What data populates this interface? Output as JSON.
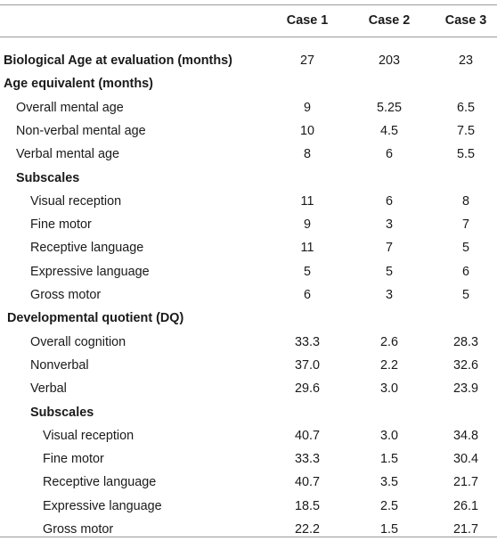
{
  "table": {
    "headers": [
      "Case 1",
      "Case 2",
      "Case 3"
    ],
    "rows": [
      {
        "label": "Biological Age at evaluation (months)",
        "level": 0,
        "bold": true,
        "values": [
          "27",
          "203",
          "23"
        ]
      },
      {
        "label": "Age equivalent (months)",
        "level": 0,
        "bold": true,
        "values": [
          "",
          "",
          ""
        ]
      },
      {
        "label": "Overall mental age",
        "level": 1,
        "bold": false,
        "values": [
          "9",
          "5.25",
          "6.5"
        ]
      },
      {
        "label": "Non-verbal mental age",
        "level": 1,
        "bold": false,
        "values": [
          "10",
          "4.5",
          "7.5"
        ]
      },
      {
        "label": "Verbal mental age",
        "level": 1,
        "bold": false,
        "values": [
          "8",
          "6",
          "5.5"
        ]
      },
      {
        "label": "Subscales",
        "level": 1,
        "bold": true,
        "values": [
          "",
          "",
          ""
        ]
      },
      {
        "label": "Visual reception",
        "level": 2,
        "bold": false,
        "values": [
          "11",
          "6",
          "8"
        ]
      },
      {
        "label": "Fine motor",
        "level": 2,
        "bold": false,
        "values": [
          "9",
          "3",
          "7"
        ]
      },
      {
        "label": "Receptive language",
        "level": 2,
        "bold": false,
        "values": [
          "11",
          "7",
          "5"
        ]
      },
      {
        "label": "Expressive language",
        "level": 2,
        "bold": false,
        "values": [
          "5",
          "5",
          "6"
        ]
      },
      {
        "label": "Gross motor",
        "level": 2,
        "bold": false,
        "values": [
          "6",
          "3",
          "5"
        ]
      },
      {
        "label": "Developmental quotient (DQ)",
        "level": 0.5,
        "bold": true,
        "values": [
          "",
          "",
          ""
        ]
      },
      {
        "label": "Overall cognition",
        "level": 2,
        "bold": false,
        "values": [
          "33.3",
          "2.6",
          "28.3"
        ]
      },
      {
        "label": "Nonverbal",
        "level": 2,
        "bold": false,
        "values": [
          "37.0",
          "2.2",
          "32.6"
        ]
      },
      {
        "label": "Verbal",
        "level": 2,
        "bold": false,
        "values": [
          "29.6",
          "3.0",
          "23.9"
        ]
      },
      {
        "label": "Subscales",
        "level": 2,
        "bold": true,
        "values": [
          "",
          "",
          ""
        ]
      },
      {
        "label": "Visual reception",
        "level": 3,
        "bold": false,
        "values": [
          "40.7",
          "3.0",
          "34.8"
        ]
      },
      {
        "label": "Fine motor",
        "level": 3,
        "bold": false,
        "values": [
          "33.3",
          "1.5",
          "30.4"
        ]
      },
      {
        "label": "Receptive language",
        "level": 3,
        "bold": false,
        "values": [
          "40.7",
          "3.5",
          "21.7"
        ]
      },
      {
        "label": "Expressive language",
        "level": 3,
        "bold": false,
        "values": [
          "18.5",
          "2.5",
          "26.1"
        ]
      },
      {
        "label": "Gross motor",
        "level": 3,
        "bold": false,
        "values": [
          "22.2",
          "1.5",
          "21.7"
        ]
      }
    ]
  }
}
